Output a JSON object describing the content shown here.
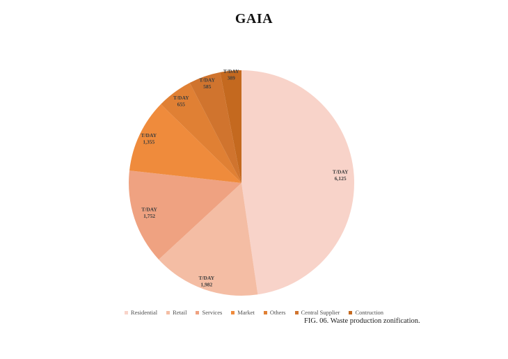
{
  "page": {
    "title": "GAIA",
    "caption": "FIG. 06. Waste production zonification."
  },
  "chart_data": {
    "type": "pie",
    "title": "GAIA",
    "unit_label": "T/DAY",
    "categories": [
      "Residential",
      "Retail",
      "Services",
      "Market",
      "Others",
      "Central Supplier",
      "Contruction"
    ],
    "values": [
      6125,
      1982,
      1752,
      1355,
      655,
      585,
      389
    ],
    "value_labels": [
      "6,125",
      "1,982",
      "1,752",
      "1,355",
      "655",
      "585",
      "389"
    ],
    "colors": [
      "#f8d3c9",
      "#f4bda4",
      "#efa281",
      "#ef8b3c",
      "#e08034",
      "#d0742e",
      "#c4691f"
    ],
    "total": 12843,
    "start_angle_deg": 0,
    "direction": "clockwise",
    "legend_position": "bottom",
    "caption": "FIG. 06. Waste production zonification."
  }
}
